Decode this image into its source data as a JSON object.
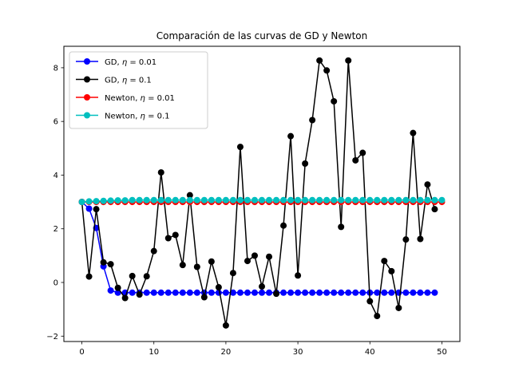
{
  "chart_data": {
    "type": "line",
    "title": "Comparación de las curvas de GD y Newton",
    "xlabel": "",
    "ylabel": "",
    "xlim": [
      -2.5,
      52.5
    ],
    "ylim": [
      -2.2,
      8.8
    ],
    "xticks": [
      0,
      10,
      20,
      30,
      40,
      50
    ],
    "yticks": [
      -2,
      0,
      2,
      4,
      6,
      8
    ],
    "grid": false,
    "legend_position": "top-left",
    "series": [
      {
        "name": "GD, η = 0.01",
        "name_prefix": "GD, ",
        "name_suffix": " = 0.01",
        "color": "#0000ff",
        "x": [
          0,
          1,
          2,
          3,
          4,
          5,
          6,
          7,
          8,
          9,
          10,
          11,
          12,
          13,
          14,
          15,
          16,
          17,
          18,
          19,
          20,
          21,
          22,
          23,
          24,
          25,
          26,
          27,
          28,
          29,
          30,
          31,
          32,
          33,
          34,
          35,
          36,
          37,
          38,
          39,
          40,
          41,
          42,
          43,
          44,
          45,
          46,
          47,
          48,
          49
        ],
        "values": [
          3.0,
          2.75,
          2.03,
          0.6,
          -0.3,
          -0.38,
          -0.38,
          -0.38,
          -0.38,
          -0.38,
          -0.38,
          -0.38,
          -0.38,
          -0.38,
          -0.38,
          -0.38,
          -0.38,
          -0.38,
          -0.38,
          -0.38,
          -0.38,
          -0.38,
          -0.38,
          -0.38,
          -0.38,
          -0.38,
          -0.38,
          -0.38,
          -0.38,
          -0.38,
          -0.38,
          -0.38,
          -0.38,
          -0.38,
          -0.38,
          -0.38,
          -0.38,
          -0.38,
          -0.38,
          -0.38,
          -0.38,
          -0.38,
          -0.38,
          -0.38,
          -0.38,
          -0.38,
          -0.38,
          -0.38,
          -0.38,
          -0.38
        ]
      },
      {
        "name": "GD, η = 0.1",
        "name_prefix": "GD, ",
        "name_suffix": " = 0.1",
        "color": "#000000",
        "x": [
          0,
          1,
          2,
          3,
          4,
          5,
          6,
          7,
          8,
          9,
          10,
          11,
          12,
          13,
          14,
          15,
          16,
          17,
          18,
          19,
          20,
          21,
          22,
          23,
          24,
          25,
          26,
          27,
          28,
          29,
          30,
          31,
          32,
          33,
          34,
          35,
          36,
          37,
          38,
          39,
          40,
          41,
          42,
          43,
          44,
          45,
          46,
          47,
          48,
          49
        ],
        "values": [
          3.0,
          0.22,
          2.73,
          0.75,
          0.68,
          -0.2,
          -0.58,
          0.24,
          -0.45,
          0.23,
          1.17,
          4.1,
          1.65,
          1.77,
          0.65,
          3.25,
          0.58,
          -0.55,
          0.78,
          -0.18,
          -1.6,
          0.35,
          5.05,
          0.8,
          1.0,
          -0.15,
          0.96,
          -0.42,
          2.12,
          5.45,
          0.26,
          4.43,
          6.05,
          8.27,
          7.9,
          6.75,
          2.07,
          8.27,
          4.55,
          4.83,
          -0.7,
          -1.25,
          0.8,
          0.42,
          -0.95,
          1.6,
          5.57,
          1.62,
          3.65,
          2.73
        ]
      },
      {
        "name": "Newton, η = 0.01",
        "name_prefix": "Newton, ",
        "name_suffix": " = 0.01",
        "color": "#ff0000",
        "x": [
          0,
          1,
          2,
          3,
          4,
          5,
          6,
          7,
          8,
          9,
          10,
          11,
          12,
          13,
          14,
          15,
          16,
          17,
          18,
          19,
          20,
          21,
          22,
          23,
          24,
          25,
          26,
          27,
          28,
          29,
          30,
          31,
          32,
          33,
          34,
          35,
          36,
          37,
          38,
          39,
          40,
          41,
          42,
          43,
          44,
          45,
          46,
          47,
          48,
          49,
          50
        ],
        "values": [
          3.0,
          3.0,
          3.0,
          3.0,
          3.0,
          3.0,
          3.0,
          3.0,
          3.0,
          3.0,
          3.0,
          3.0,
          3.0,
          3.0,
          3.0,
          3.0,
          3.0,
          3.0,
          3.0,
          3.0,
          3.0,
          3.0,
          3.0,
          3.0,
          3.0,
          3.0,
          3.0,
          3.0,
          3.0,
          3.0,
          3.0,
          3.0,
          3.0,
          3.0,
          3.0,
          3.0,
          3.0,
          3.0,
          3.0,
          3.0,
          3.0,
          3.0,
          3.0,
          3.0,
          3.0,
          3.0,
          3.0,
          3.0,
          3.0,
          3.0,
          3.0
        ]
      },
      {
        "name": "Newton, η = 0.1",
        "name_prefix": "Newton, ",
        "name_suffix": " = 0.1",
        "color": "#00bfbf",
        "x": [
          0,
          1,
          2,
          3,
          4,
          5,
          6,
          7,
          8,
          9,
          10,
          11,
          12,
          13,
          14,
          15,
          16,
          17,
          18,
          19,
          20,
          21,
          22,
          23,
          24,
          25,
          26,
          27,
          28,
          29,
          30,
          31,
          32,
          33,
          34,
          35,
          36,
          37,
          38,
          39,
          40,
          41,
          42,
          43,
          44,
          45,
          46,
          47,
          48,
          49,
          50
        ],
        "values": [
          3.0,
          3.02,
          3.03,
          3.04,
          3.05,
          3.06,
          3.06,
          3.07,
          3.07,
          3.07,
          3.07,
          3.07,
          3.07,
          3.07,
          3.07,
          3.07,
          3.07,
          3.07,
          3.07,
          3.07,
          3.07,
          3.07,
          3.07,
          3.07,
          3.07,
          3.07,
          3.07,
          3.07,
          3.07,
          3.07,
          3.07,
          3.07,
          3.07,
          3.07,
          3.07,
          3.07,
          3.07,
          3.07,
          3.07,
          3.07,
          3.07,
          3.07,
          3.07,
          3.07,
          3.07,
          3.07,
          3.07,
          3.07,
          3.07,
          3.07,
          3.07
        ]
      }
    ]
  }
}
